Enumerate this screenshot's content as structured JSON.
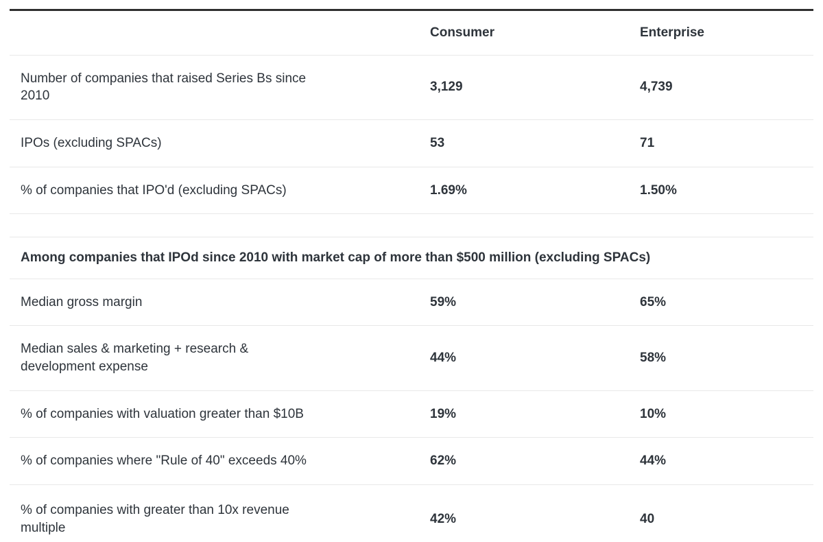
{
  "chart_data": {
    "type": "table",
    "columns": [
      "",
      "Consumer",
      "Enterprise"
    ],
    "sections": [
      {
        "rows": [
          {
            "label": "Number of companies that raised Series Bs since 2010",
            "consumer": "3,129",
            "enterprise": "4,739"
          },
          {
            "label": "IPOs (excluding SPACs)",
            "consumer": "53",
            "enterprise": "71"
          },
          {
            "label": "% of companies that IPO'd (excluding SPACs)",
            "consumer": "1.69%",
            "enterprise": "1.50%"
          }
        ]
      },
      {
        "header": "Among companies that IPOd since 2010 with market cap of more than $500 million (excluding SPACs)",
        "rows": [
          {
            "label": "Median gross margin",
            "consumer": "59%",
            "enterprise": "65%"
          },
          {
            "label": "Median sales & marketing + research & development expense",
            "consumer": "44%",
            "enterprise": "58%"
          },
          {
            "label": "% of companies with valuation greater than $10B",
            "consumer": "19%",
            "enterprise": "10%"
          },
          {
            "label": "% of companies where \"Rule of 40\" exceeds 40%",
            "consumer": "62%",
            "enterprise": "44%"
          },
          {
            "label": "% of companies with greater than 10x revenue multiple",
            "consumer": "42%",
            "enterprise": "40"
          }
        ]
      }
    ],
    "layout": {
      "grid": false,
      "legend": "none",
      "column_alignment": "left"
    },
    "colors": {
      "text": "#2e343b",
      "divider": "#e8e8e8",
      "top_border": "#2f2f2f",
      "background": "#ffffff"
    }
  }
}
